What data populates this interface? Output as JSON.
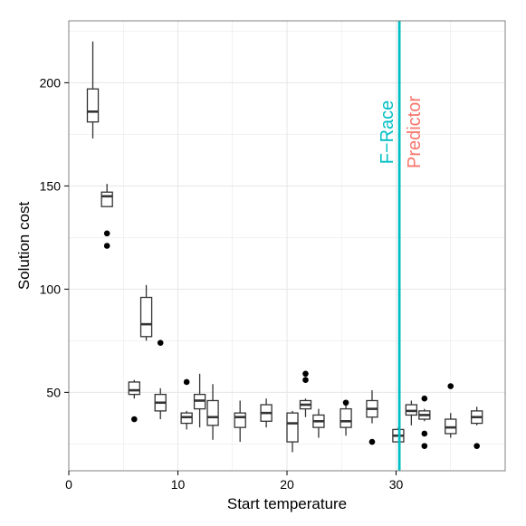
{
  "chart_data": {
    "type": "boxplot",
    "title": "",
    "xlabel": "Start temperature",
    "ylabel": "Solution cost",
    "xlim": [
      0,
      40
    ],
    "ylim": [
      12,
      230
    ],
    "x_ticks": [
      0,
      10,
      20,
      30
    ],
    "x_tick_labels": [
      "0",
      "10",
      "20",
      "30"
    ],
    "y_ticks": [
      50,
      100,
      150,
      200
    ],
    "y_tick_labels": [
      "50",
      "100",
      "150",
      "200"
    ],
    "grid": true,
    "box_width": 1.0,
    "boxes": [
      {
        "x": 2.2,
        "whisker_low": 173,
        "q1": 181,
        "median": 186,
        "q3": 197,
        "whisker_high": 220,
        "outliers": []
      },
      {
        "x": 3.5,
        "whisker_low": 140,
        "q1": 140,
        "median": 145,
        "q3": 147,
        "whisker_high": 151,
        "outliers": [
          127,
          121
        ]
      },
      {
        "x": 6.0,
        "whisker_low": 47,
        "q1": 49,
        "median": 51,
        "q3": 55,
        "whisker_high": 56,
        "outliers": [
          37
        ]
      },
      {
        "x": 7.1,
        "whisker_low": 75,
        "q1": 77,
        "median": 83,
        "q3": 96,
        "whisker_high": 102,
        "outliers": []
      },
      {
        "x": 8.4,
        "whisker_low": 37,
        "q1": 41,
        "median": 45,
        "q3": 49,
        "whisker_high": 52,
        "outliers": [
          74
        ]
      },
      {
        "x": 10.8,
        "whisker_low": 32,
        "q1": 35,
        "median": 38,
        "q3": 40,
        "whisker_high": 41,
        "outliers": [
          55
        ]
      },
      {
        "x": 12.0,
        "whisker_low": 33,
        "q1": 42,
        "median": 46,
        "q3": 49,
        "whisker_high": 59,
        "outliers": []
      },
      {
        "x": 13.2,
        "whisker_low": 27,
        "q1": 34,
        "median": 38,
        "q3": 46,
        "whisker_high": 54,
        "outliers": []
      },
      {
        "x": 15.7,
        "whisker_low": 26,
        "q1": 33,
        "median": 38,
        "q3": 40,
        "whisker_high": 46,
        "outliers": []
      },
      {
        "x": 18.1,
        "whisker_low": 33,
        "q1": 36,
        "median": 40,
        "q3": 44,
        "whisker_high": 47,
        "outliers": []
      },
      {
        "x": 20.5,
        "whisker_low": 21,
        "q1": 26,
        "median": 35,
        "q3": 40,
        "whisker_high": 41,
        "outliers": []
      },
      {
        "x": 21.7,
        "whisker_low": 38,
        "q1": 42,
        "median": 44,
        "q3": 46,
        "whisker_high": 47,
        "outliers": [
          59,
          56
        ]
      },
      {
        "x": 22.9,
        "whisker_low": 28,
        "q1": 33,
        "median": 36,
        "q3": 39,
        "whisker_high": 42,
        "outliers": []
      },
      {
        "x": 25.4,
        "whisker_low": 29,
        "q1": 33,
        "median": 36,
        "q3": 42,
        "whisker_high": 45,
        "outliers": [
          45
        ]
      },
      {
        "x": 27.8,
        "whisker_low": 35,
        "q1": 38,
        "median": 42,
        "q3": 46,
        "whisker_high": 51,
        "outliers": [
          26
        ]
      },
      {
        "x": 30.2,
        "whisker_low": 26,
        "q1": 26,
        "median": 29,
        "q3": 32,
        "whisker_high": 33,
        "outliers": []
      },
      {
        "x": 31.4,
        "whisker_low": 34,
        "q1": 39,
        "median": 41,
        "q3": 44,
        "whisker_high": 46,
        "outliers": []
      },
      {
        "x": 32.6,
        "whisker_low": 36,
        "q1": 37,
        "median": 39,
        "q3": 41,
        "whisker_high": 42,
        "outliers": [
          47,
          30,
          24
        ]
      },
      {
        "x": 35.0,
        "whisker_low": 28,
        "q1": 30,
        "median": 33,
        "q3": 37,
        "whisker_high": 40,
        "outliers": [
          53
        ]
      },
      {
        "x": 37.4,
        "whisker_low": 34,
        "q1": 35,
        "median": 38,
        "q3": 41,
        "whisker_high": 43,
        "outliers": [
          24
        ]
      }
    ],
    "vertical_line": {
      "x": 30.3,
      "color": "#00BFC4"
    },
    "annotations": [
      {
        "text": "F−Race",
        "color": "#00BFC4"
      },
      {
        "text": "Predictor",
        "color": "#F8766D"
      }
    ],
    "colors": {
      "panel_bg": "#ffffff",
      "grid": "#e6e6e6",
      "box_stroke": "#333333",
      "point": "#000000",
      "axis": "#000000"
    }
  }
}
